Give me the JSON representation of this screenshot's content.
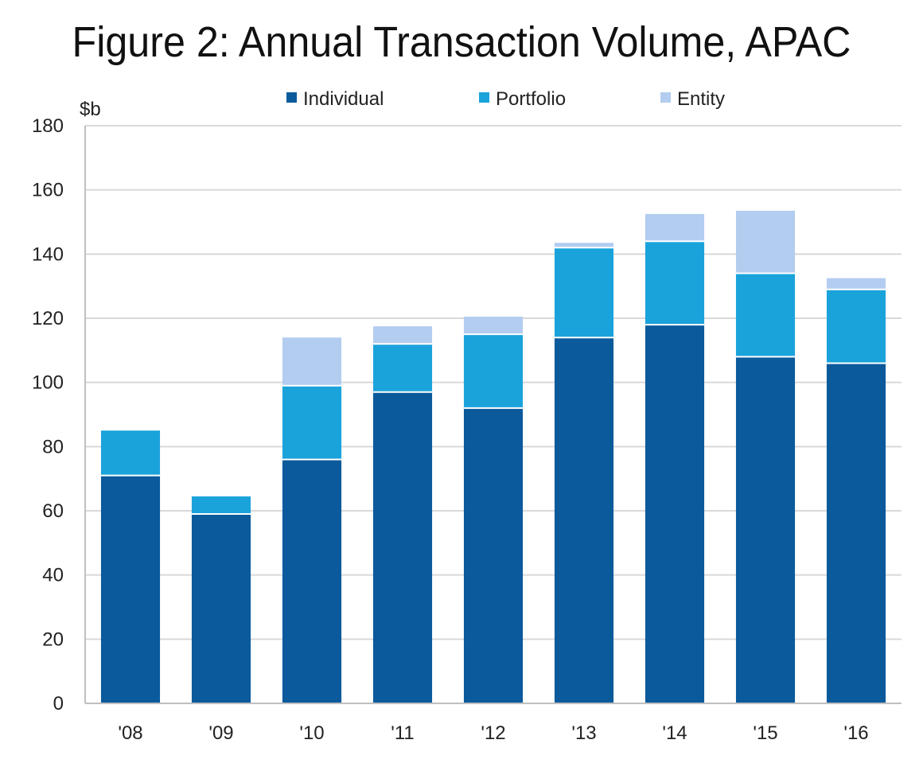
{
  "chart_data": {
    "type": "bar",
    "stacked": true,
    "title": "Figure 2: Annual Transaction Volume, APAC",
    "ylabel": "$b",
    "xlabel": "",
    "ylim": [
      0,
      180
    ],
    "yticks": [
      0,
      20,
      40,
      60,
      80,
      100,
      120,
      140,
      160,
      180
    ],
    "grid": true,
    "legend_position": "top",
    "categories": [
      "'08",
      "'09",
      "'10",
      "'11",
      "'12",
      "'13",
      "'14",
      "'15",
      "'16"
    ],
    "series": [
      {
        "name": "Individual",
        "color": "#0a5a9c",
        "values": [
          71,
          59,
          76,
          97,
          92,
          114,
          118,
          108,
          106
        ]
      },
      {
        "name": "Portfolio",
        "color": "#1aa3db",
        "values": [
          14,
          5.5,
          23,
          15,
          23,
          28,
          26,
          26,
          23
        ]
      },
      {
        "name": "Entity",
        "color": "#b3cdf0",
        "values": [
          0,
          0,
          15,
          5.5,
          5.5,
          1.5,
          8.5,
          19.5,
          3.5
        ]
      }
    ]
  }
}
